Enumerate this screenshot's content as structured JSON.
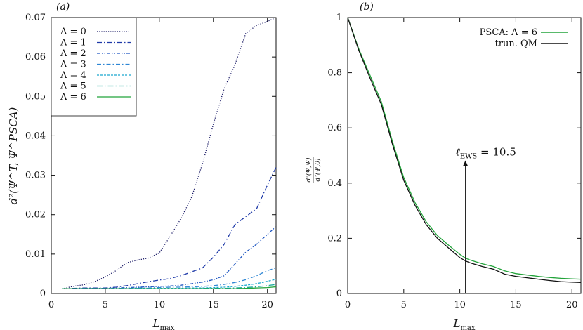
{
  "chart_data": [
    {
      "type": "line",
      "panel_label": "(a)",
      "xlabel": "L_max",
      "xlabel_main": "L",
      "xlabel_sub": "max",
      "ylabel": "d²(Ψ^T, Ψ^PSCA)",
      "xlim": [
        0,
        20.8
      ],
      "ylim": [
        0,
        0.07
      ],
      "x_ticks": [
        0,
        5,
        10,
        15,
        20
      ],
      "x_tick_labels": [
        "0",
        "5",
        "10",
        "15",
        "20"
      ],
      "y_ticks": [
        0,
        0.01,
        0.02,
        0.03,
        0.04,
        0.05,
        0.06,
        0.07
      ],
      "y_tick_labels": [
        "0",
        "0.01",
        "0.02",
        "0.03",
        "0.04",
        "0.05",
        "0.06",
        "0.07"
      ],
      "legend_position": "top-left",
      "series": [
        {
          "name": "Λ = 0",
          "color": "#1a1a66",
          "dash": "1.2,2",
          "x": [
            1,
            2,
            3,
            4,
            5,
            6,
            7,
            8,
            9,
            10,
            11,
            12,
            13,
            14,
            15,
            16,
            17,
            18,
            19,
            20,
            20.8
          ],
          "y": [
            0.0012,
            0.0018,
            0.0022,
            0.003,
            0.0042,
            0.0058,
            0.0078,
            0.0085,
            0.009,
            0.0103,
            0.0145,
            0.019,
            0.0245,
            0.033,
            0.043,
            0.052,
            0.058,
            0.066,
            0.068,
            0.069,
            0.07
          ]
        },
        {
          "name": "Λ = 1",
          "color": "#1f3aa8",
          "dash": "7,3,1.5,3",
          "x": [
            1,
            2,
            3,
            4,
            5,
            6,
            7,
            8,
            9,
            10,
            11,
            12,
            13,
            14,
            15,
            16,
            17,
            18,
            19,
            20,
            20.8
          ],
          "y": [
            0.0012,
            0.0013,
            0.0014,
            0.0014,
            0.0014,
            0.0016,
            0.002,
            0.0025,
            0.003,
            0.0034,
            0.0038,
            0.0045,
            0.0055,
            0.0065,
            0.0092,
            0.0125,
            0.0175,
            0.0195,
            0.0215,
            0.0275,
            0.032
          ]
        },
        {
          "name": "Λ = 2",
          "color": "#2158c2",
          "dash": "5,2,1.5,2,1.5,2",
          "x": [
            1,
            2,
            3,
            4,
            5,
            6,
            7,
            8,
            9,
            10,
            11,
            12,
            13,
            14,
            15,
            16,
            17,
            18,
            19,
            20,
            20.8
          ],
          "y": [
            0.0012,
            0.0012,
            0.0013,
            0.0013,
            0.0013,
            0.0014,
            0.0015,
            0.0016,
            0.0017,
            0.0018,
            0.0019,
            0.0021,
            0.0025,
            0.0029,
            0.0035,
            0.0045,
            0.0075,
            0.0105,
            0.0125,
            0.015,
            0.017
          ]
        },
        {
          "name": "Λ = 3",
          "color": "#2e86d4",
          "dash": "6,3,1.5,3",
          "x": [
            1,
            2,
            3,
            4,
            5,
            6,
            7,
            8,
            9,
            10,
            11,
            12,
            13,
            14,
            15,
            16,
            17,
            18,
            19,
            20,
            20.8
          ],
          "y": [
            0.0012,
            0.0012,
            0.0012,
            0.0012,
            0.0012,
            0.0013,
            0.0013,
            0.0014,
            0.0014,
            0.0015,
            0.0016,
            0.0016,
            0.0017,
            0.0018,
            0.002,
            0.0023,
            0.0028,
            0.0035,
            0.0045,
            0.0058,
            0.0065
          ]
        },
        {
          "name": "Λ = 4",
          "color": "#1aa8cf",
          "dash": "3,2",
          "x": [
            1,
            2,
            3,
            4,
            5,
            6,
            7,
            8,
            9,
            10,
            11,
            12,
            13,
            14,
            15,
            16,
            17,
            18,
            19,
            20,
            20.8
          ],
          "y": [
            0.0012,
            0.0012,
            0.0012,
            0.0012,
            0.0012,
            0.0012,
            0.0012,
            0.0013,
            0.0013,
            0.0013,
            0.0013,
            0.0013,
            0.0014,
            0.0014,
            0.0015,
            0.0016,
            0.0018,
            0.0021,
            0.0025,
            0.0031,
            0.0036
          ]
        },
        {
          "name": "Λ = 5",
          "color": "#17a89a",
          "dash": "8,3,1.5,3",
          "x": [
            1,
            2,
            3,
            4,
            5,
            6,
            7,
            8,
            9,
            10,
            11,
            12,
            13,
            14,
            15,
            16,
            17,
            18,
            19,
            20,
            20.8
          ],
          "y": [
            0.0012,
            0.0012,
            0.0012,
            0.0012,
            0.0012,
            0.0012,
            0.0012,
            0.0012,
            0.0012,
            0.0012,
            0.0012,
            0.0012,
            0.0012,
            0.0013,
            0.0013,
            0.0013,
            0.0014,
            0.0015,
            0.0017,
            0.002,
            0.0023
          ]
        },
        {
          "name": "Λ = 6",
          "color": "#22a33a",
          "dash": "",
          "x": [
            1,
            2,
            3,
            4,
            5,
            6,
            7,
            8,
            9,
            10,
            11,
            12,
            13,
            14,
            15,
            16,
            17,
            18,
            19,
            20,
            20.8
          ],
          "y": [
            0.0012,
            0.0012,
            0.0012,
            0.0012,
            0.0012,
            0.0012,
            0.0012,
            0.0012,
            0.0012,
            0.0012,
            0.0012,
            0.0012,
            0.0012,
            0.0012,
            0.0012,
            0.0012,
            0.0012,
            0.0013,
            0.0014,
            0.0015,
            0.0017
          ]
        }
      ]
    },
    {
      "type": "line",
      "panel_label": "(b)",
      "xlabel": "L_max",
      "xlabel_main": "L",
      "xlabel_sub": "max",
      "ylabel": "d²(Ψ,Ψ) / d²(Ψ,0)",
      "ylabel_num": "d²(Ψ,Ψ)",
      "ylabel_den": "d²(Ψ,0)",
      "xlim": [
        0,
        20.8
      ],
      "ylim": [
        0,
        1
      ],
      "x_ticks": [
        0,
        5,
        10,
        15,
        20
      ],
      "x_tick_labels": [
        "0",
        "5",
        "10",
        "15",
        "20"
      ],
      "y_ticks": [
        0,
        0.2,
        0.4,
        0.6,
        0.8,
        1
      ],
      "y_tick_labels": [
        "0",
        "0.2",
        "0.4",
        "0.6",
        "0.8",
        "1"
      ],
      "legend_position": "top-right",
      "series": [
        {
          "name": "PSCA: Λ = 6",
          "color": "#22a33a",
          "dash": "",
          "x": [
            0,
            1,
            2,
            3,
            4,
            5,
            6,
            7,
            8,
            9,
            10,
            10.5,
            11,
            12,
            13,
            14,
            15,
            16,
            17,
            18,
            19,
            20,
            20.8
          ],
          "y": [
            1.0,
            0.885,
            0.79,
            0.695,
            0.55,
            0.42,
            0.33,
            0.26,
            0.21,
            0.175,
            0.142,
            0.128,
            0.12,
            0.108,
            0.098,
            0.082,
            0.072,
            0.067,
            0.062,
            0.058,
            0.055,
            0.053,
            0.052
          ]
        },
        {
          "name": "trun. QM",
          "color": "#111111",
          "dash": "",
          "x": [
            0,
            1,
            2,
            3,
            4,
            5,
            6,
            7,
            8,
            9,
            10,
            10.5,
            11,
            12,
            13,
            14,
            15,
            16,
            17,
            18,
            19,
            20,
            20.8
          ],
          "y": [
            1.0,
            0.88,
            0.78,
            0.685,
            0.54,
            0.41,
            0.32,
            0.25,
            0.2,
            0.165,
            0.13,
            0.118,
            0.11,
            0.098,
            0.088,
            0.07,
            0.062,
            0.057,
            0.052,
            0.047,
            0.043,
            0.041,
            0.04
          ]
        }
      ],
      "annotation": {
        "text": "ℓ_EWS = 10.5",
        "main": "ℓ",
        "sub": "EWS",
        "rest": " = 10.5",
        "x": 10.5,
        "y_from": 0,
        "y_to": 0.5
      }
    }
  ]
}
